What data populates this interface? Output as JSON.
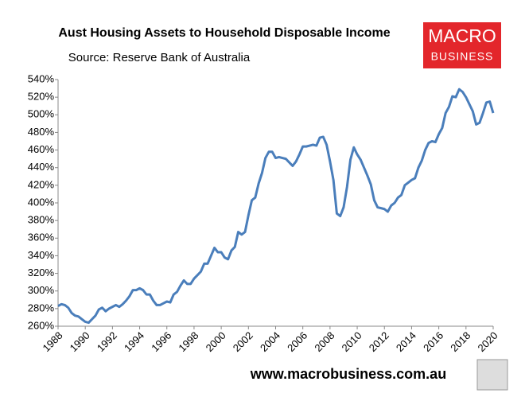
{
  "chart_data": {
    "type": "line",
    "title": "Aust Housing Assets to Household Disposable Income",
    "subtitle": "Source: Reserve Bank of Australia",
    "annotations": [
      "MACRO",
      "BUSINESS",
      "www.macrobusiness.com.au"
    ],
    "color": "#4a7ebb",
    "grid": false,
    "x": [
      1988,
      1988.25,
      1988.5,
      1988.75,
      1989,
      1989.25,
      1989.5,
      1989.75,
      1990,
      1990.25,
      1990.5,
      1990.75,
      1991,
      1991.25,
      1991.5,
      1991.75,
      1992,
      1992.25,
      1992.5,
      1992.75,
      1993,
      1993.25,
      1993.5,
      1993.75,
      1994,
      1994.25,
      1994.5,
      1994.75,
      1995,
      1995.25,
      1995.5,
      1995.75,
      1996,
      1996.25,
      1996.5,
      1996.75,
      1997,
      1997.25,
      1997.5,
      1997.75,
      1998,
      1998.25,
      1998.5,
      1998.75,
      1999,
      1999.25,
      1999.5,
      1999.75,
      2000,
      2000.25,
      2000.5,
      2000.75,
      2001,
      2001.25,
      2001.5,
      2001.75,
      2002,
      2002.25,
      2002.5,
      2002.75,
      2003,
      2003.25,
      2003.5,
      2003.75,
      2004,
      2004.25,
      2004.5,
      2004.75,
      2005,
      2005.25,
      2005.5,
      2005.75,
      2006,
      2006.25,
      2006.5,
      2006.75,
      2007,
      2007.25,
      2007.5,
      2007.75,
      2008,
      2008.25,
      2008.5,
      2008.75,
      2009,
      2009.25,
      2009.5,
      2009.75,
      2010,
      2010.25,
      2010.5,
      2010.75,
      2011,
      2011.25,
      2011.5,
      2011.75,
      2012,
      2012.25,
      2012.5,
      2012.75,
      2013,
      2013.25,
      2013.5,
      2013.75,
      2014,
      2014.25,
      2014.5,
      2014.75,
      2015,
      2015.25,
      2015.5,
      2015.75,
      2016,
      2016.25,
      2016.5,
      2016.75,
      2017,
      2017.25,
      2017.5,
      2017.75,
      2018,
      2018.25,
      2018.5,
      2018.75,
      2019,
      2019.25,
      2019.5,
      2019.75,
      2020
    ],
    "values": [
      283,
      285,
      284,
      281,
      275,
      272,
      271,
      268,
      265,
      264,
      268,
      272,
      279,
      281,
      277,
      280,
      282,
      284,
      282,
      285,
      289,
      294,
      301,
      301,
      303,
      301,
      296,
      296,
      289,
      284,
      284,
      286,
      288,
      287,
      296,
      299,
      306,
      312,
      308,
      308,
      314,
      318,
      322,
      331,
      331,
      340,
      349,
      344,
      344,
      338,
      336,
      346,
      350,
      367,
      364,
      367,
      386,
      403,
      406,
      422,
      434,
      451,
      458,
      458,
      451,
      452,
      451,
      450,
      446,
      442,
      447,
      455,
      464,
      464,
      465,
      466,
      465,
      474,
      475,
      466,
      447,
      426,
      388,
      385,
      395,
      418,
      449,
      463,
      455,
      449,
      440,
      431,
      421,
      403,
      395,
      394,
      393,
      390,
      397,
      400,
      406,
      409,
      420,
      423,
      426,
      428,
      440,
      448,
      460,
      468,
      470,
      469,
      478,
      485,
      502,
      509,
      521,
      520,
      529,
      526,
      520,
      512,
      504,
      489,
      491,
      502,
      514,
      515,
      502
    ],
    "xlim": [
      1988,
      2020
    ],
    "xticks": [
      1988,
      1990,
      1992,
      1994,
      1996,
      1998,
      2000,
      2002,
      2004,
      2006,
      2008,
      2010,
      2012,
      2014,
      2016,
      2018,
      2020
    ],
    "ylim": [
      260,
      540
    ],
    "yticks": [
      {
        "value": 260,
        "label": "260%"
      },
      {
        "value": 280,
        "label": "280%"
      },
      {
        "value": 300,
        "label": "300%"
      },
      {
        "value": 320,
        "label": "320%"
      },
      {
        "value": 340,
        "label": "340%"
      },
      {
        "value": 360,
        "label": "360%"
      },
      {
        "value": 380,
        "label": "380%"
      },
      {
        "value": 400,
        "label": "400%"
      },
      {
        "value": 420,
        "label": "420%"
      },
      {
        "value": 440,
        "label": "440%"
      },
      {
        "value": 460,
        "label": "460%"
      },
      {
        "value": 480,
        "label": "480%"
      },
      {
        "value": 500,
        "label": "500%"
      },
      {
        "value": 520,
        "label": "520%"
      },
      {
        "value": 540,
        "label": "540%"
      }
    ]
  }
}
